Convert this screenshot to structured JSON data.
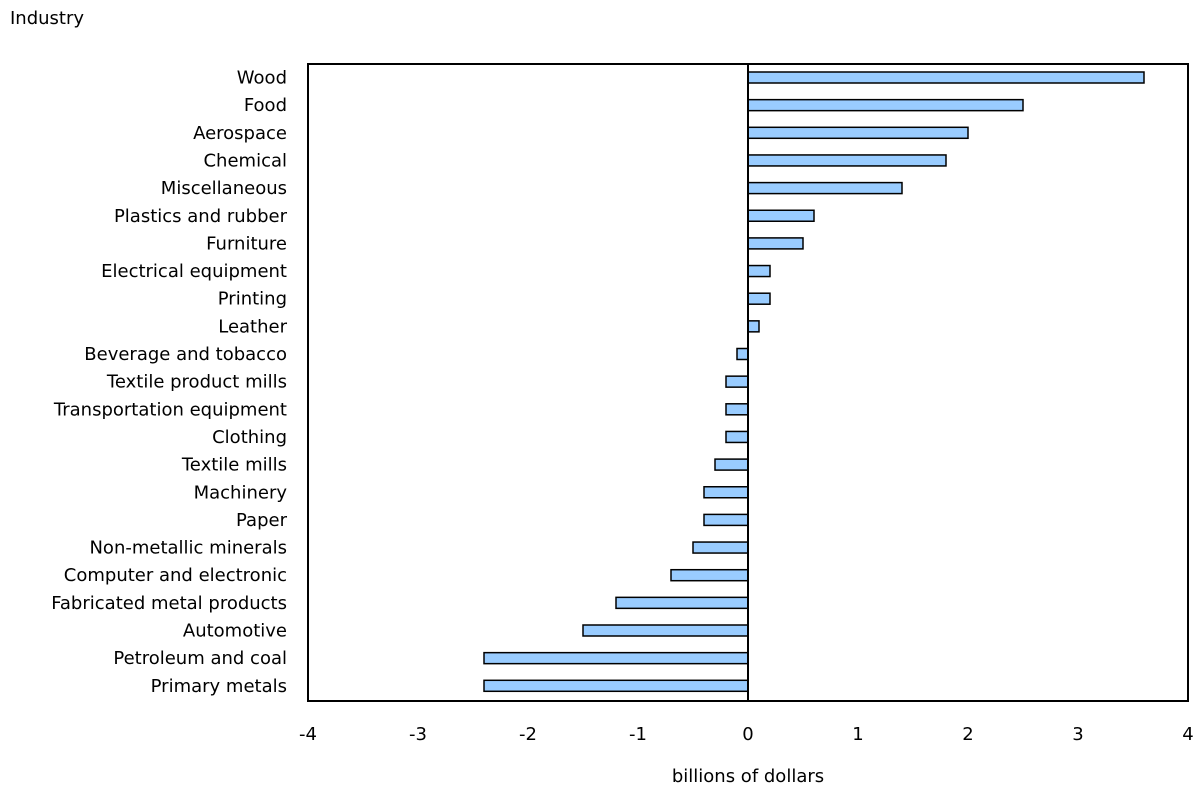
{
  "chart_data": {
    "type": "bar",
    "orientation": "horizontal",
    "ylabel": "Industry",
    "xlabel": "billions of dollars",
    "xlim": [
      -4,
      4
    ],
    "xticks": [
      "-4",
      "-3",
      "-2",
      "-1",
      "0",
      "1",
      "2",
      "3",
      "4"
    ],
    "grid": false,
    "bar_color": "#99ccff",
    "categories": [
      "Wood",
      "Food",
      "Aerospace",
      "Chemical",
      "Miscellaneous",
      "Plastics and rubber",
      "Furniture",
      "Electrical equipment",
      "Printing",
      "Leather",
      "Beverage and tobacco",
      "Textile product mills",
      "Transportation equipment",
      "Clothing",
      "Textile mills",
      "Machinery",
      "Paper",
      "Non-metallic minerals",
      "Computer and electronic",
      "Fabricated metal products",
      "Automotive",
      "Petroleum and coal",
      "Primary metals"
    ],
    "values": [
      3.6,
      2.5,
      2.0,
      1.8,
      1.4,
      0.6,
      0.5,
      0.2,
      0.2,
      0.1,
      -0.1,
      -0.2,
      -0.2,
      -0.2,
      -0.3,
      -0.4,
      -0.4,
      -0.5,
      -0.7,
      -1.2,
      -1.5,
      -2.4,
      -2.4
    ]
  }
}
